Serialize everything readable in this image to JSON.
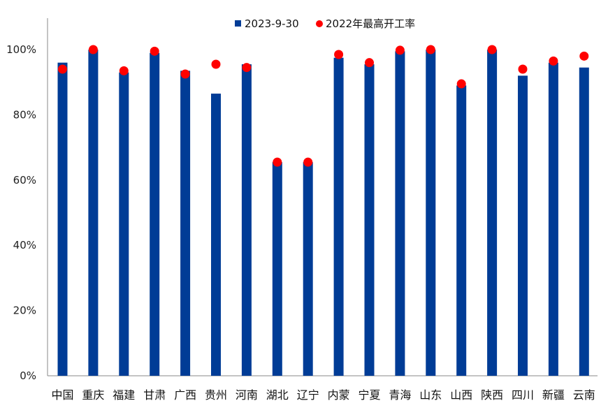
{
  "chart_data": {
    "type": "bar",
    "categories": [
      "中国",
      "重庆",
      "福建",
      "甘肃",
      "广西",
      "贵州",
      "河南",
      "湖北",
      "辽宁",
      "内蒙",
      "宁夏",
      "青海",
      "山东",
      "山西",
      "陕西",
      "四川",
      "新疆",
      "云南"
    ],
    "series": [
      {
        "name": "2023-9-30",
        "type": "bar",
        "color": "#003c96",
        "values": [
          0.96,
          1.0,
          0.93,
          0.99,
          0.935,
          0.865,
          0.955,
          0.655,
          0.655,
          0.975,
          0.955,
          0.995,
          1.0,
          0.89,
          1.0,
          0.92,
          0.96,
          0.945
        ]
      },
      {
        "name": "2022年最高开工率",
        "type": "scatter",
        "color": "#ff0000",
        "values": [
          0.94,
          1.0,
          0.935,
          0.995,
          0.925,
          0.955,
          0.945,
          0.655,
          0.655,
          0.985,
          0.96,
          0.998,
          1.0,
          0.895,
          1.0,
          0.94,
          0.965,
          0.98
        ]
      }
    ],
    "ylim": [
      0,
      1.0
    ],
    "yticks": [
      "0%",
      "20%",
      "40%",
      "60%",
      "80%",
      "100%"
    ],
    "legend_position": "top",
    "grid": false
  }
}
